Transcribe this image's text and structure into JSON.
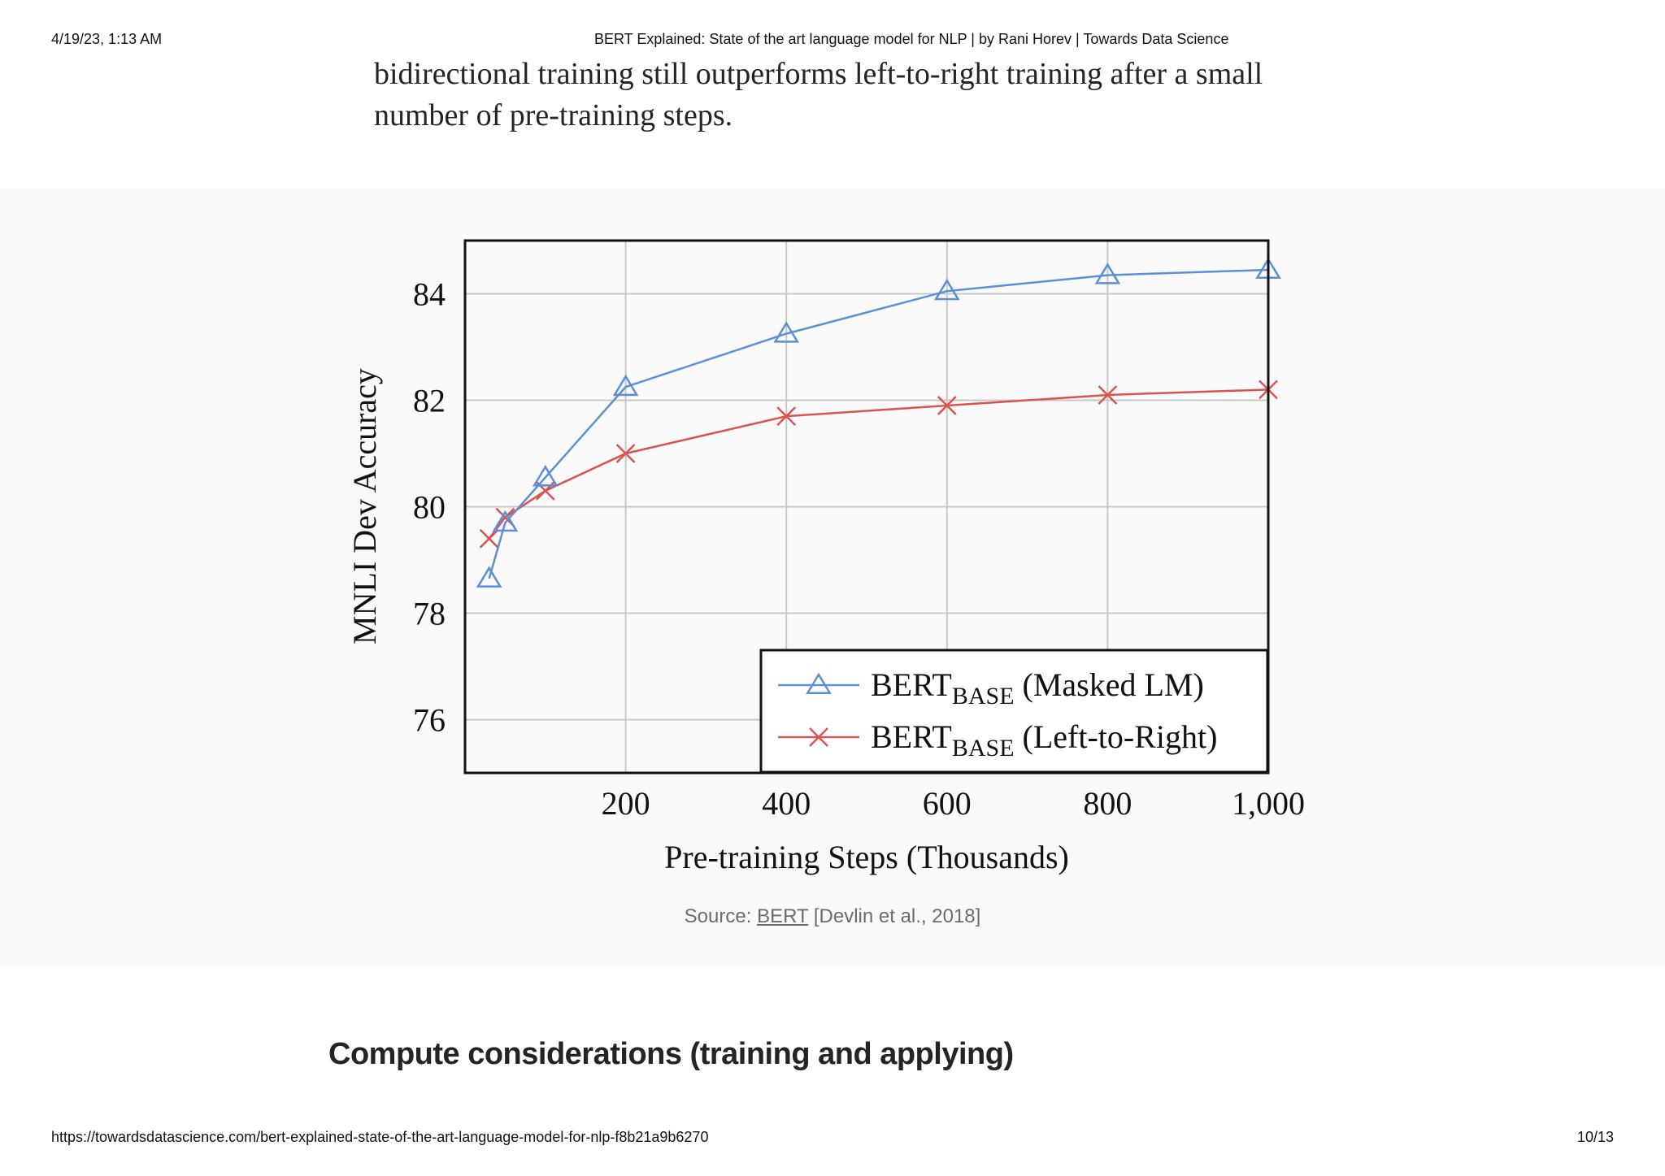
{
  "print_header": {
    "datetime": "4/19/23, 1:13 AM",
    "title": "BERT Explained: State of the art language model for NLP | by Rani Horev | Towards Data Science"
  },
  "print_footer": {
    "url": "https://towardsdatascience.com/bert-explained-state-of-the-art-language-model-for-nlp-f8b21a9b6270",
    "page": "10/13"
  },
  "article": {
    "intro_lines": [
      "bidirectional training still outperforms left-to-right training after a small",
      "number of pre-training steps."
    ],
    "caption": {
      "prefix": "Source: ",
      "link": "BERT",
      "suffix": " [Devlin et al., 2018]"
    },
    "section_heading": "Compute considerations (training and applying)"
  },
  "colors": {
    "masked_lm": "#5b8fd8",
    "left_to_right": "#d9544f",
    "grid": "#c8c8c8",
    "axis": "#111111"
  },
  "chart_data": {
    "type": "line",
    "xlabel": "Pre-training Steps (Thousands)",
    "ylabel": "MNLI Dev Accuracy",
    "xlim": [
      0,
      1000
    ],
    "ylim": [
      75,
      85
    ],
    "xticks": [
      200,
      400,
      600,
      800,
      1000
    ],
    "xtick_labels": [
      "200",
      "400",
      "600",
      "800",
      "1,000"
    ],
    "yticks": [
      76,
      78,
      80,
      82,
      84
    ],
    "grid": true,
    "legend_position": "bottom-right",
    "series": [
      {
        "name": "BERT",
        "name_sub": "BASE",
        "name_suffix": "(Masked LM)",
        "marker": "triangle",
        "color": "#5b8fd8",
        "x": [
          30,
          50,
          100,
          200,
          400,
          600,
          800,
          1000
        ],
        "y": [
          78.65,
          79.7,
          80.55,
          82.25,
          83.25,
          84.05,
          84.35,
          84.45
        ]
      },
      {
        "name": "BERT",
        "name_sub": "BASE",
        "name_suffix": "(Left-to-Right)",
        "marker": "x",
        "color": "#d9544f",
        "x": [
          30,
          50,
          100,
          200,
          400,
          600,
          800,
          1000
        ],
        "y": [
          79.4,
          79.8,
          80.3,
          81.0,
          81.7,
          81.9,
          82.1,
          82.2
        ]
      }
    ]
  }
}
